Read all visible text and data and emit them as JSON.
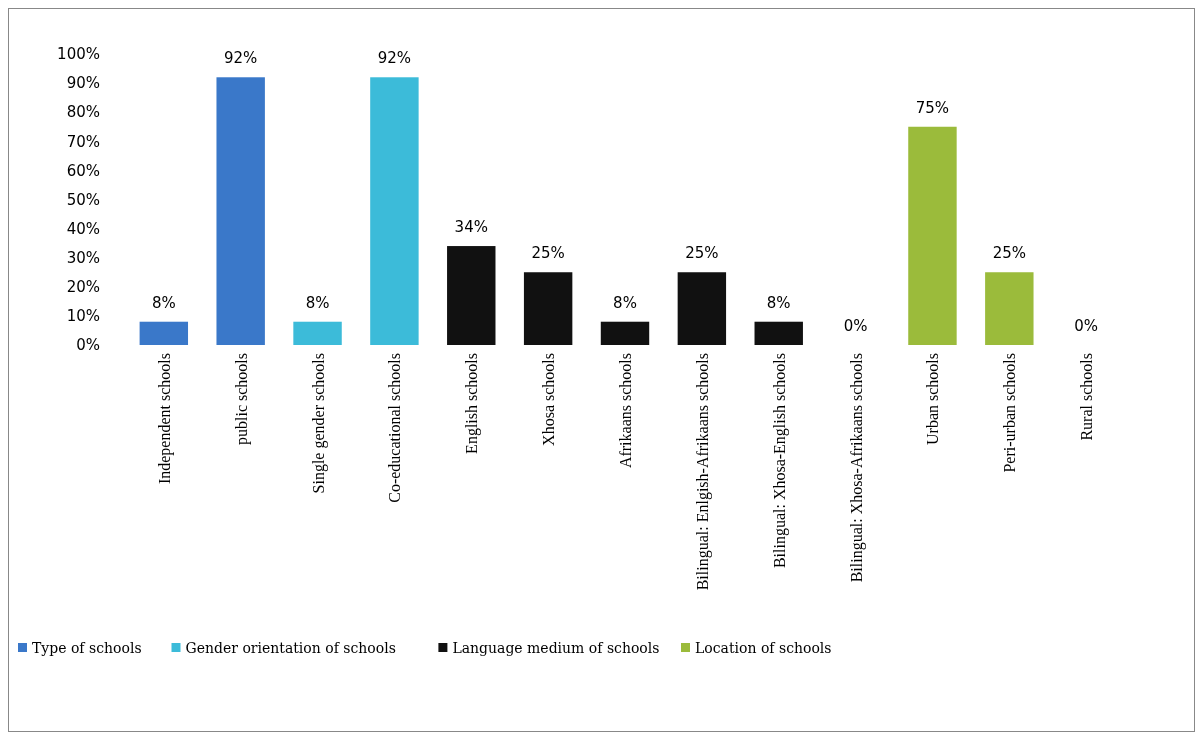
{
  "chart_data": {
    "type": "bar",
    "categories": [
      "Independent schools",
      "public schools",
      "Single gender schools",
      "Co-educational schools",
      "English schools",
      "Xhosa schools",
      "Afrikaans schools",
      "Bilingual: Enlgish-Afrikaans schools",
      "Bilingual: Xhosa-English schools",
      "Bilingual: Xhosa-Afrikaans schools",
      "Urban schools",
      "Peri-urban schools",
      "Rural schools"
    ],
    "series": [
      {
        "name": "Type of schools",
        "color": "#3a78c9",
        "values": [
          8,
          92,
          null,
          null,
          null,
          null,
          null,
          null,
          null,
          null,
          null,
          null,
          null
        ],
        "value_labels": [
          "8%",
          "92%",
          null,
          null,
          null,
          null,
          null,
          null,
          null,
          null,
          null,
          null,
          null
        ]
      },
      {
        "name": "Gender orientation of schools",
        "color": "#3cbbd9",
        "values": [
          null,
          null,
          8,
          92,
          null,
          null,
          null,
          null,
          null,
          null,
          null,
          null,
          null
        ],
        "value_labels": [
          null,
          null,
          "8%",
          "92%",
          null,
          null,
          null,
          null,
          null,
          null,
          null,
          null,
          null
        ]
      },
      {
        "name": "Language medium of schools",
        "color": "#111111",
        "values": [
          null,
          null,
          null,
          null,
          34,
          25,
          8,
          25,
          8,
          0,
          null,
          null,
          null
        ],
        "value_labels": [
          null,
          null,
          null,
          null,
          "34%",
          "25%",
          "8%",
          "25%",
          "8%",
          "0%",
          null,
          null,
          null
        ]
      },
      {
        "name": "Location of schools",
        "color": "#9bbb3b",
        "values": [
          null,
          null,
          null,
          null,
          null,
          null,
          null,
          null,
          null,
          null,
          75,
          25,
          0
        ],
        "value_labels": [
          null,
          null,
          null,
          null,
          null,
          null,
          null,
          null,
          null,
          null,
          "75%",
          "25%",
          "0%"
        ]
      }
    ],
    "ylim": [
      0,
      100
    ],
    "yticks": [
      {
        "value": 0,
        "label": "0%"
      },
      {
        "value": 10,
        "label": "10%"
      },
      {
        "value": 20,
        "label": "20%"
      },
      {
        "value": 30,
        "label": "30%"
      },
      {
        "value": 40,
        "label": "40%"
      },
      {
        "value": 50,
        "label": "50%"
      },
      {
        "value": 60,
        "label": "60%"
      },
      {
        "value": 70,
        "label": "70%"
      },
      {
        "value": 80,
        "label": "80%"
      },
      {
        "value": 90,
        "label": "90%"
      },
      {
        "value": 100,
        "label": "100%"
      }
    ],
    "grid": false,
    "legend": "bottom"
  }
}
